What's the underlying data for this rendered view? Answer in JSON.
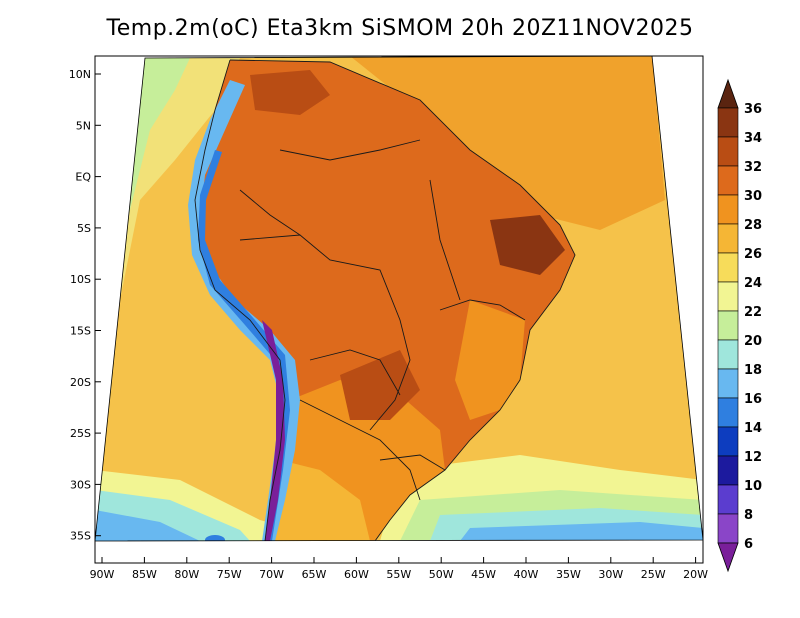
{
  "title": "Temp.2m(oC) Eta3km SiSMOM 20h 20Z11NOV2025",
  "map": {
    "variable": "2 m temperature",
    "units": "oC",
    "lat_labels": [
      "10N",
      "5N",
      "EQ",
      "5S",
      "10S",
      "15S",
      "20S",
      "25S",
      "30S",
      "35S"
    ],
    "lon_labels": [
      "90W",
      "85W",
      "80W",
      "75W",
      "70W",
      "65W",
      "60W",
      "55W",
      "50W",
      "45W",
      "40W",
      "35W",
      "30W",
      "25W",
      "20W"
    ]
  },
  "colorbar": {
    "labels": [
      "36",
      "34",
      "32",
      "30",
      "28",
      "26",
      "24",
      "22",
      "20",
      "18",
      "16",
      "14",
      "12",
      "10",
      "8",
      "6"
    ],
    "colors": [
      "#5a2410",
      "#8a3512",
      "#b94d14",
      "#dd6a1c",
      "#f0931f",
      "#f5b635",
      "#f7dc5a",
      "#f2f593",
      "#c6ee9a",
      "#9fe6dc",
      "#68b8f0",
      "#2f7fe0",
      "#0d3dbf",
      "#1c1a9e",
      "#5b3dcf",
      "#8a45c8",
      "#7a1f9a"
    ]
  }
}
